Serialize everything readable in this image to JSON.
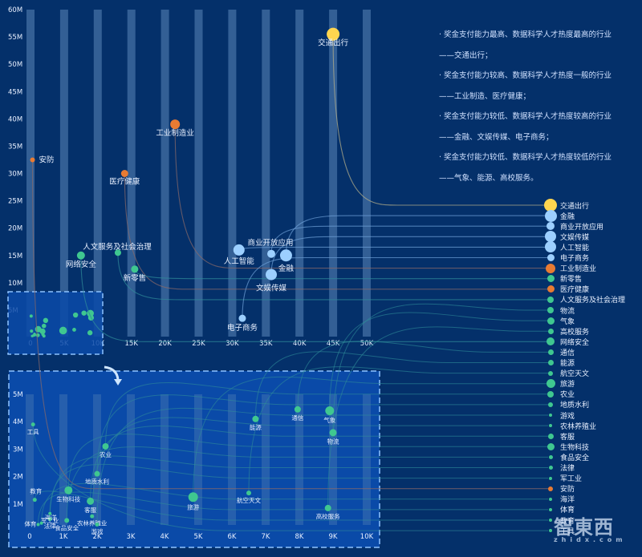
{
  "colors": {
    "background": "#04306a",
    "inset_background": "#0a4aa8",
    "inset_border": "#8ec3ff",
    "column_band": "#5b86b8",
    "yellow": "#ffd54f",
    "light_blue": "#9ccfff",
    "orange": "#e87b33",
    "green": "#3fc790",
    "text": "#e8f0ff"
  },
  "notes": [
    "· 奖金支付能力最高、数据科学人才热度最高的行业",
    "——交通出行；",
    "· 奖金支付能力较高、数据科学人才热度一般的行业",
    "——工业制造、医疗健康；",
    "· 奖金支付能力较低、数据科学人才热度较高的行业",
    "——金融、文娱传媒、电子商务；",
    "· 奖金支付能力较低、数据科学人才热度较低的行业",
    "——气象、能源、高校服务。"
  ],
  "watermark": {
    "logo": "智東西",
    "domain": "zhidx.com"
  },
  "chart_data": [
    {
      "type": "scatter",
      "title": "",
      "xlabel": "",
      "ylabel": "",
      "xlim": [
        0,
        50000
      ],
      "ylim": [
        0,
        60000000
      ],
      "x_ticks": [
        "0",
        "5K",
        "10K",
        "15K",
        "20K",
        "25K",
        "30K",
        "35K",
        "40K",
        "45K",
        "50K"
      ],
      "y_ticks": [
        "5M",
        "10M",
        "15M",
        "20M",
        "25M",
        "30M",
        "35M",
        "40M",
        "45M",
        "50M",
        "55M",
        "60M"
      ],
      "points": [
        {
          "name": "交通出行",
          "x": 45000,
          "y": 55500000,
          "group": "yellow",
          "size": 8
        },
        {
          "name": "工业制造业",
          "x": 21500,
          "y": 39000000,
          "group": "orange",
          "size": 6
        },
        {
          "name": "医疗健康",
          "x": 14000,
          "y": 30000000,
          "group": "orange",
          "size": 4.5
        },
        {
          "name": "安防",
          "x": 300,
          "y": 32500000,
          "group": "orange",
          "size": 3
        },
        {
          "name": "人文服务及社会治理",
          "x": 13000,
          "y": 15500000,
          "group": "green",
          "size": 4
        },
        {
          "name": "网络安全",
          "x": 7500,
          "y": 15000000,
          "group": "green",
          "size": 5
        },
        {
          "name": "新零售",
          "x": 15500,
          "y": 12500000,
          "group": "green",
          "size": 4.5
        },
        {
          "name": "人工智能",
          "x": 31000,
          "y": 16000000,
          "group": "light_blue",
          "size": 7
        },
        {
          "name": "商业开放应用",
          "x": 35800,
          "y": 15300000,
          "group": "light_blue",
          "size": 5
        },
        {
          "name": "金融",
          "x": 38000,
          "y": 15000000,
          "group": "light_blue",
          "size": 7.5
        },
        {
          "name": "文娱传媒",
          "x": 35800,
          "y": 11500000,
          "group": "light_blue",
          "size": 7
        },
        {
          "name": "电子商务",
          "x": 31500,
          "y": 3500000,
          "group": "light_blue",
          "size": 4.5
        }
      ],
      "inset_region": {
        "xlim": [
          0,
          10000
        ],
        "ylim": [
          0,
          5000000
        ]
      }
    },
    {
      "type": "scatter",
      "title": "inset (zoom of 0–10K × 0–5M)",
      "xlim": [
        0,
        10000
      ],
      "ylim": [
        0,
        5000000
      ],
      "x_ticks": [
        "0",
        "1K",
        "2K",
        "3K",
        "4K",
        "5K",
        "6K",
        "7K",
        "8K",
        "9K",
        "10K"
      ],
      "y_ticks": [
        "1M",
        "2M",
        "3M",
        "4M",
        "5M"
      ],
      "points": [
        {
          "name": "工具",
          "x": 100,
          "y": 3900000,
          "size": 2.5
        },
        {
          "name": "农业",
          "x": 2250,
          "y": 3100000,
          "size": 4
        },
        {
          "name": "地质水利",
          "x": 2000,
          "y": 2100000,
          "size": 3.5
        },
        {
          "name": "教育",
          "x": 150,
          "y": 1150000,
          "size": 2.5
        },
        {
          "name": "生物科技",
          "x": 1150,
          "y": 1500000,
          "size": 5
        },
        {
          "name": "客服",
          "x": 1800,
          "y": 1100000,
          "size": 4.5
        },
        {
          "name": "军工业",
          "x": 600,
          "y": 650000,
          "size": 2
        },
        {
          "name": "农林养殖业",
          "x": 1850,
          "y": 550000,
          "size": 2.5
        },
        {
          "name": "法律",
          "x": 600,
          "y": 450000,
          "size": 2.5
        },
        {
          "name": "食品安全",
          "x": 1100,
          "y": 400000,
          "size": 3
        },
        {
          "name": "海洋",
          "x": 350,
          "y": 300000,
          "size": 2
        },
        {
          "name": "体育",
          "x": 250,
          "y": 250000,
          "size": 2
        },
        {
          "name": "游戏",
          "x": 2000,
          "y": 250000,
          "size": 2.5
        },
        {
          "name": "旅游",
          "x": 4850,
          "y": 1250000,
          "size": 6
        },
        {
          "name": "航空天文",
          "x": 6500,
          "y": 1400000,
          "size": 3
        },
        {
          "name": "能源",
          "x": 6700,
          "y": 4100000,
          "size": 4
        },
        {
          "name": "通信",
          "x": 7950,
          "y": 4450000,
          "size": 4
        },
        {
          "name": "气象",
          "x": 8900,
          "y": 4400000,
          "size": 5.5
        },
        {
          "name": "物流",
          "x": 9000,
          "y": 3600000,
          "size": 4.5
        },
        {
          "name": "高校服务",
          "x": 8850,
          "y": 850000,
          "size": 4
        }
      ]
    }
  ],
  "legend": [
    {
      "label": "交通出行",
      "group": "yellow",
      "size": 8
    },
    {
      "label": "金融",
      "group": "light_blue",
      "size": 7.5
    },
    {
      "label": "商业开放应用",
      "group": "light_blue",
      "size": 5
    },
    {
      "label": "文娱传媒",
      "group": "light_blue",
      "size": 7
    },
    {
      "label": "人工智能",
      "group": "light_blue",
      "size": 7
    },
    {
      "label": "电子商务",
      "group": "light_blue",
      "size": 4.5
    },
    {
      "label": "工业制造业",
      "group": "orange",
      "size": 6
    },
    {
      "label": "新零售",
      "group": "green",
      "size": 4.5
    },
    {
      "label": "医疗健康",
      "group": "orange",
      "size": 4.5
    },
    {
      "label": "人文服务及社会治理",
      "group": "green",
      "size": 4
    },
    {
      "label": "物流",
      "group": "green",
      "size": 4
    },
    {
      "label": "气象",
      "group": "green",
      "size": 4.5
    },
    {
      "label": "高校服务",
      "group": "green",
      "size": 3.5
    },
    {
      "label": "网络安全",
      "group": "green",
      "size": 5
    },
    {
      "label": "通信",
      "group": "green",
      "size": 3.5
    },
    {
      "label": "能源",
      "group": "green",
      "size": 3.5
    },
    {
      "label": "航空天文",
      "group": "green",
      "size": 3
    },
    {
      "label": "旅游",
      "group": "green",
      "size": 5.5
    },
    {
      "label": "农业",
      "group": "green",
      "size": 4
    },
    {
      "label": "地质水利",
      "group": "green",
      "size": 3
    },
    {
      "label": "游戏",
      "group": "green",
      "size": 2
    },
    {
      "label": "农林养殖业",
      "group": "green",
      "size": 2
    },
    {
      "label": "客服",
      "group": "green",
      "size": 3.5
    },
    {
      "label": "生物科技",
      "group": "green",
      "size": 4.5
    },
    {
      "label": "食品安全",
      "group": "green",
      "size": 2.5
    },
    {
      "label": "法律",
      "group": "green",
      "size": 2.5
    },
    {
      "label": "军工业",
      "group": "green",
      "size": 2
    },
    {
      "label": "安防",
      "group": "orange",
      "size": 3
    },
    {
      "label": "海洋",
      "group": "green",
      "size": 2
    },
    {
      "label": "体育",
      "group": "green",
      "size": 2
    },
    {
      "label": "教育",
      "group": "green",
      "size": 2
    },
    {
      "label": "工具",
      "group": "green",
      "size": 2
    }
  ]
}
